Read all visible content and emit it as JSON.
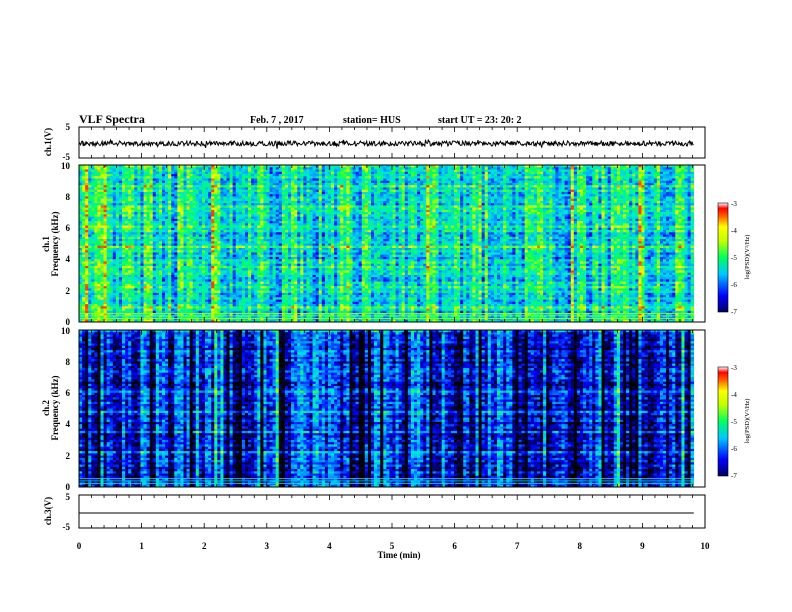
{
  "header": {
    "title": "VLF Spectra",
    "date": "Feb. 7 , 2017",
    "station": "station= HUS",
    "start": "start  UT =   23: 20: 2"
  },
  "colors": {
    "trace": "#000000",
    "colormap": [
      "#000000",
      "#00007a",
      "#0000ff",
      "#0096ff",
      "#00e0e0",
      "#00ff50",
      "#a0ff00",
      "#ffff00",
      "#ff8000",
      "#ff0000",
      "#ffffff"
    ]
  },
  "chart_data": [
    {
      "type": "line",
      "title": "",
      "xlabel": "",
      "ylabel": "ch.1(V)",
      "ylim": [
        -5,
        5
      ],
      "yticks": [
        "5",
        "-5"
      ],
      "x": [
        0,
        9.82
      ],
      "series": [
        {
          "values": [
            0,
            0
          ]
        }
      ]
    },
    {
      "type": "heatmap",
      "ylabel_top": "ch.1",
      "ylabel": "Frequency  (kHz)",
      "ylim": [
        0,
        10
      ],
      "yticks": [
        "0",
        "2",
        "4",
        "6",
        "8",
        "10"
      ],
      "x_range": [
        0,
        9.82
      ],
      "colorbar": {
        "label": "log(PSD)(V²/Hz)",
        "range": [
          -7,
          -3
        ],
        "ticks": [
          "-3",
          "-4",
          "-5",
          "-6",
          "-7"
        ]
      }
    },
    {
      "type": "heatmap",
      "ylabel_top": "ch.2",
      "ylabel": "Frequency  (kHz)",
      "ylim": [
        0,
        10
      ],
      "yticks": [
        "0",
        "2",
        "4",
        "6",
        "8",
        "10"
      ],
      "x_range": [
        0,
        9.82
      ],
      "colorbar": {
        "label": "log(PSD)(V²/Hz)",
        "range": [
          -7,
          -3
        ],
        "ticks": [
          "-3",
          "-4",
          "-5",
          "-6",
          "-7"
        ]
      }
    },
    {
      "type": "line",
      "title": "",
      "ylabel": "ch.3(V)",
      "ylim": [
        -5,
        5
      ],
      "yticks": [
        "5",
        "-5"
      ],
      "x": [
        0,
        9.82
      ],
      "series": [
        {
          "values": [
            -2.5,
            -2.5
          ]
        }
      ],
      "xlabel": "Time  (min)",
      "xlim": [
        0,
        10
      ],
      "xticks": [
        "0",
        "1",
        "2",
        "3",
        "4",
        "5",
        "6",
        "7",
        "8",
        "9",
        "10"
      ]
    }
  ]
}
